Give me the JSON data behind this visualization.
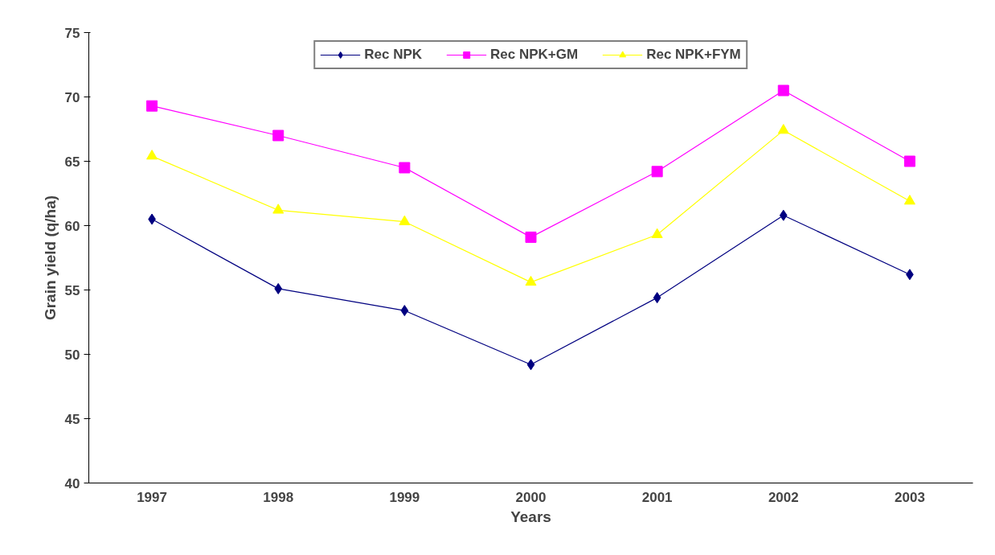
{
  "chart_data": {
    "type": "line",
    "xlabel": "Years",
    "ylabel": "Grain yield (q/ha)",
    "categories": [
      "1997",
      "1998",
      "1999",
      "2000",
      "2001",
      "2002",
      "2003"
    ],
    "series": [
      {
        "name": "Rec NPK",
        "color": "#000080",
        "marker": "diamond",
        "values": [
          60.5,
          55.1,
          53.4,
          49.2,
          54.4,
          60.8,
          56.2
        ]
      },
      {
        "name": "Rec NPK+GM",
        "color": "#ff00ff",
        "marker": "square",
        "values": [
          69.3,
          67.0,
          64.5,
          59.1,
          64.2,
          70.5,
          65.0
        ]
      },
      {
        "name": "Rec NPK+FYM",
        "color": "#ffff00",
        "marker": "triangle",
        "values": [
          65.4,
          61.2,
          60.3,
          55.6,
          59.3,
          67.4,
          61.9
        ]
      }
    ],
    "ylim": [
      40,
      75
    ],
    "yticks": [
      40,
      45,
      50,
      55,
      60,
      65,
      70,
      75
    ],
    "grid": false,
    "legend": "top"
  }
}
